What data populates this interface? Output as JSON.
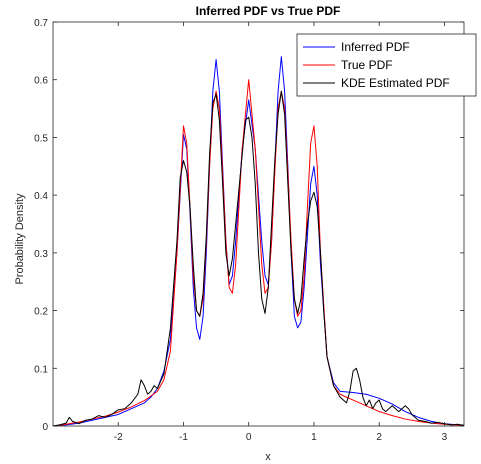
{
  "chart_data": {
    "type": "line",
    "title": "Inferred PDF vs True PDF",
    "xlabel": "x",
    "ylabel": "Probability Density",
    "xlim": [
      -3,
      3.3
    ],
    "ylim": [
      0,
      0.7
    ],
    "xticks": [
      -2,
      -1,
      0,
      1,
      2,
      3
    ],
    "xtick_labels": [
      "-2",
      "-1",
      "0",
      "1",
      "2",
      "3"
    ],
    "yticks": [
      0,
      0.1,
      0.2,
      0.3,
      0.4,
      0.5,
      0.6,
      0.7
    ],
    "ytick_labels": [
      "0",
      "0.1",
      "0.2",
      "0.3",
      "0.4",
      "0.5",
      "0.6",
      "0.7"
    ],
    "grid": false,
    "legend_position": "top-right",
    "series": [
      {
        "name": "Inferred PDF",
        "color": "#0000ff",
        "points": [
          [
            -3.0,
            0.0
          ],
          [
            -2.8,
            0.002
          ],
          [
            -2.6,
            0.005
          ],
          [
            -2.4,
            0.01
          ],
          [
            -2.2,
            0.015
          ],
          [
            -2.0,
            0.02
          ],
          [
            -1.8,
            0.03
          ],
          [
            -1.6,
            0.04
          ],
          [
            -1.5,
            0.05
          ],
          [
            -1.4,
            0.065
          ],
          [
            -1.3,
            0.095
          ],
          [
            -1.2,
            0.15
          ],
          [
            -1.1,
            0.3
          ],
          [
            -1.0,
            0.505
          ],
          [
            -0.95,
            0.48
          ],
          [
            -0.9,
            0.37
          ],
          [
            -0.85,
            0.24
          ],
          [
            -0.8,
            0.17
          ],
          [
            -0.75,
            0.15
          ],
          [
            -0.7,
            0.19
          ],
          [
            -0.65,
            0.3
          ],
          [
            -0.6,
            0.45
          ],
          [
            -0.55,
            0.58
          ],
          [
            -0.5,
            0.635
          ],
          [
            -0.45,
            0.58
          ],
          [
            -0.4,
            0.45
          ],
          [
            -0.35,
            0.32
          ],
          [
            -0.3,
            0.245
          ],
          [
            -0.25,
            0.26
          ],
          [
            -0.2,
            0.32
          ],
          [
            -0.1,
            0.48
          ],
          [
            0.0,
            0.565
          ],
          [
            0.1,
            0.48
          ],
          [
            0.2,
            0.32
          ],
          [
            0.25,
            0.26
          ],
          [
            0.3,
            0.245
          ],
          [
            0.35,
            0.32
          ],
          [
            0.4,
            0.45
          ],
          [
            0.45,
            0.58
          ],
          [
            0.5,
            0.64
          ],
          [
            0.55,
            0.58
          ],
          [
            0.6,
            0.45
          ],
          [
            0.65,
            0.3
          ],
          [
            0.7,
            0.19
          ],
          [
            0.75,
            0.17
          ],
          [
            0.8,
            0.18
          ],
          [
            0.85,
            0.24
          ],
          [
            0.9,
            0.33
          ],
          [
            0.95,
            0.42
          ],
          [
            1.0,
            0.45
          ],
          [
            1.05,
            0.4
          ],
          [
            1.1,
            0.28
          ],
          [
            1.2,
            0.12
          ],
          [
            1.3,
            0.075
          ],
          [
            1.4,
            0.06
          ],
          [
            1.6,
            0.058
          ],
          [
            1.8,
            0.055
          ],
          [
            2.0,
            0.048
          ],
          [
            2.2,
            0.038
          ],
          [
            2.4,
            0.025
          ],
          [
            2.6,
            0.015
          ],
          [
            2.8,
            0.008
          ],
          [
            3.0,
            0.004
          ],
          [
            3.3,
            0.001
          ]
        ]
      },
      {
        "name": "True PDF",
        "color": "#ff0000",
        "points": [
          [
            -3.0,
            0.0
          ],
          [
            -2.8,
            0.003
          ],
          [
            -2.6,
            0.007
          ],
          [
            -2.4,
            0.012
          ],
          [
            -2.2,
            0.017
          ],
          [
            -2.0,
            0.024
          ],
          [
            -1.8,
            0.033
          ],
          [
            -1.6,
            0.044
          ],
          [
            -1.4,
            0.06
          ],
          [
            -1.3,
            0.08
          ],
          [
            -1.2,
            0.13
          ],
          [
            -1.1,
            0.3
          ],
          [
            -1.0,
            0.52
          ],
          [
            -0.95,
            0.49
          ],
          [
            -0.9,
            0.38
          ],
          [
            -0.85,
            0.26
          ],
          [
            -0.8,
            0.2
          ],
          [
            -0.75,
            0.19
          ],
          [
            -0.7,
            0.22
          ],
          [
            -0.65,
            0.32
          ],
          [
            -0.6,
            0.45
          ],
          [
            -0.55,
            0.55
          ],
          [
            -0.5,
            0.58
          ],
          [
            -0.45,
            0.55
          ],
          [
            -0.4,
            0.44
          ],
          [
            -0.35,
            0.32
          ],
          [
            -0.3,
            0.24
          ],
          [
            -0.25,
            0.23
          ],
          [
            -0.2,
            0.28
          ],
          [
            -0.1,
            0.48
          ],
          [
            0.0,
            0.6
          ],
          [
            0.1,
            0.48
          ],
          [
            0.2,
            0.28
          ],
          [
            0.25,
            0.23
          ],
          [
            0.3,
            0.24
          ],
          [
            0.35,
            0.32
          ],
          [
            0.4,
            0.44
          ],
          [
            0.45,
            0.55
          ],
          [
            0.5,
            0.58
          ],
          [
            0.55,
            0.55
          ],
          [
            0.6,
            0.44
          ],
          [
            0.65,
            0.32
          ],
          [
            0.7,
            0.22
          ],
          [
            0.75,
            0.19
          ],
          [
            0.8,
            0.2
          ],
          [
            0.85,
            0.26
          ],
          [
            0.9,
            0.38
          ],
          [
            0.95,
            0.49
          ],
          [
            1.0,
            0.52
          ],
          [
            1.05,
            0.45
          ],
          [
            1.1,
            0.3
          ],
          [
            1.2,
            0.12
          ],
          [
            1.3,
            0.07
          ],
          [
            1.4,
            0.055
          ],
          [
            1.6,
            0.045
          ],
          [
            1.8,
            0.035
          ],
          [
            2.0,
            0.025
          ],
          [
            2.2,
            0.018
          ],
          [
            2.4,
            0.012
          ],
          [
            2.6,
            0.008
          ],
          [
            2.8,
            0.005
          ],
          [
            3.0,
            0.003
          ],
          [
            3.3,
            0.001
          ]
        ]
      },
      {
        "name": "KDE Estimated PDF",
        "color": "#000000",
        "points": [
          [
            -3.0,
            0.0
          ],
          [
            -2.9,
            0.002
          ],
          [
            -2.8,
            0.005
          ],
          [
            -2.75,
            0.015
          ],
          [
            -2.7,
            0.008
          ],
          [
            -2.6,
            0.004
          ],
          [
            -2.5,
            0.01
          ],
          [
            -2.4,
            0.012
          ],
          [
            -2.3,
            0.018
          ],
          [
            -2.2,
            0.015
          ],
          [
            -2.1,
            0.02
          ],
          [
            -2.0,
            0.028
          ],
          [
            -1.9,
            0.03
          ],
          [
            -1.8,
            0.04
          ],
          [
            -1.7,
            0.055
          ],
          [
            -1.65,
            0.08
          ],
          [
            -1.6,
            0.07
          ],
          [
            -1.55,
            0.055
          ],
          [
            -1.5,
            0.06
          ],
          [
            -1.45,
            0.07
          ],
          [
            -1.4,
            0.065
          ],
          [
            -1.3,
            0.09
          ],
          [
            -1.2,
            0.17
          ],
          [
            -1.1,
            0.32
          ],
          [
            -1.05,
            0.43
          ],
          [
            -1.0,
            0.46
          ],
          [
            -0.95,
            0.44
          ],
          [
            -0.9,
            0.38
          ],
          [
            -0.85,
            0.28
          ],
          [
            -0.8,
            0.2
          ],
          [
            -0.75,
            0.19
          ],
          [
            -0.7,
            0.23
          ],
          [
            -0.65,
            0.33
          ],
          [
            -0.6,
            0.47
          ],
          [
            -0.55,
            0.56
          ],
          [
            -0.5,
            0.575
          ],
          [
            -0.45,
            0.53
          ],
          [
            -0.4,
            0.42
          ],
          [
            -0.35,
            0.3
          ],
          [
            -0.3,
            0.26
          ],
          [
            -0.25,
            0.29
          ],
          [
            -0.2,
            0.35
          ],
          [
            -0.1,
            0.47
          ],
          [
            -0.05,
            0.53
          ],
          [
            0.0,
            0.535
          ],
          [
            0.05,
            0.5
          ],
          [
            0.1,
            0.42
          ],
          [
            0.15,
            0.3
          ],
          [
            0.2,
            0.22
          ],
          [
            0.25,
            0.195
          ],
          [
            0.3,
            0.24
          ],
          [
            0.35,
            0.35
          ],
          [
            0.4,
            0.46
          ],
          [
            0.45,
            0.54
          ],
          [
            0.5,
            0.58
          ],
          [
            0.55,
            0.54
          ],
          [
            0.6,
            0.42
          ],
          [
            0.65,
            0.3
          ],
          [
            0.7,
            0.22
          ],
          [
            0.75,
            0.195
          ],
          [
            0.8,
            0.22
          ],
          [
            0.85,
            0.29
          ],
          [
            0.9,
            0.35
          ],
          [
            0.95,
            0.39
          ],
          [
            1.0,
            0.405
          ],
          [
            1.05,
            0.38
          ],
          [
            1.1,
            0.3
          ],
          [
            1.15,
            0.2
          ],
          [
            1.2,
            0.12
          ],
          [
            1.3,
            0.07
          ],
          [
            1.4,
            0.05
          ],
          [
            1.5,
            0.04
          ],
          [
            1.55,
            0.06
          ],
          [
            1.6,
            0.095
          ],
          [
            1.65,
            0.1
          ],
          [
            1.7,
            0.08
          ],
          [
            1.75,
            0.05
          ],
          [
            1.8,
            0.035
          ],
          [
            1.85,
            0.045
          ],
          [
            1.9,
            0.03
          ],
          [
            1.95,
            0.04
          ],
          [
            2.0,
            0.045
          ],
          [
            2.05,
            0.03
          ],
          [
            2.1,
            0.025
          ],
          [
            2.2,
            0.035
          ],
          [
            2.3,
            0.025
          ],
          [
            2.4,
            0.035
          ],
          [
            2.45,
            0.03
          ],
          [
            2.5,
            0.02
          ],
          [
            2.6,
            0.01
          ],
          [
            2.7,
            0.008
          ],
          [
            2.8,
            0.005
          ],
          [
            2.9,
            0.006
          ],
          [
            3.0,
            0.004
          ],
          [
            3.1,
            0.002
          ],
          [
            3.2,
            0.003
          ],
          [
            3.3,
            0.001
          ]
        ]
      }
    ]
  }
}
